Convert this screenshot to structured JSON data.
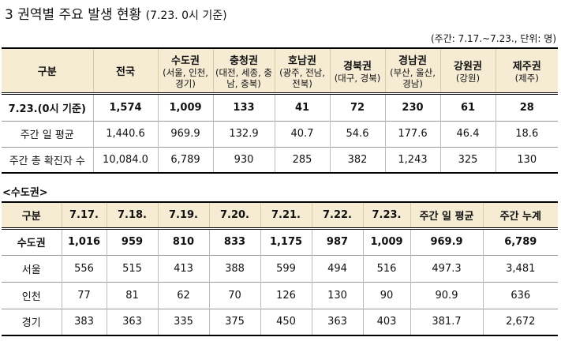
{
  "title": "3 권역별 주요 발생 현황",
  "title_note": "(7.23. 0시 기준)",
  "unit_note": "(주간: 7.17.~7.23., 단위: 명)",
  "table1": {
    "header": [
      {
        "label": "구분"
      },
      {
        "label": "전국"
      },
      {
        "label": "수도권",
        "sub": "(서울, 인천, 경기)"
      },
      {
        "label": "충청권",
        "sub": "(대전, 세종, 충남, 충북)"
      },
      {
        "label": "호남권",
        "sub": "(광주, 전남, 전북)"
      },
      {
        "label": "경북권",
        "sub": "(대구, 경북)"
      },
      {
        "label": "경남권",
        "sub": "(부산, 울산, 경남)"
      },
      {
        "label": "강원권",
        "sub": "(강원)"
      },
      {
        "label": "제주권",
        "sub": "(제주)"
      }
    ],
    "rows": [
      [
        "7.23.(0시 기준)",
        "1,574",
        "1,009",
        "133",
        "41",
        "72",
        "230",
        "61",
        "28"
      ],
      [
        "주간 일 평균",
        "1,440.6",
        "969.9",
        "132.9",
        "40.7",
        "54.6",
        "177.6",
        "46.4",
        "18.6"
      ],
      [
        "주간 총 확진자 수",
        "10,084.0",
        "6,789",
        "930",
        "285",
        "382",
        "1,243",
        "325",
        "130"
      ]
    ]
  },
  "section2": "<수도권>",
  "table2": {
    "header": [
      "구분",
      "7.17.",
      "7.18.",
      "7.19.",
      "7.20.",
      "7.21.",
      "7.22.",
      "7.23.",
      "주간 일 평균",
      "주간 누계"
    ],
    "rows": [
      [
        "수도권",
        "1,016",
        "959",
        "810",
        "833",
        "1,175",
        "987",
        "1,009",
        "969.9",
        "6,789"
      ],
      [
        "서울",
        "556",
        "515",
        "413",
        "388",
        "599",
        "494",
        "516",
        "497.3",
        "3,481"
      ],
      [
        "인천",
        "77",
        "81",
        "62",
        "70",
        "126",
        "130",
        "90",
        "90.9",
        "636"
      ],
      [
        "경기",
        "383",
        "363",
        "335",
        "375",
        "450",
        "363",
        "403",
        "381.7",
        "2,672"
      ]
    ]
  }
}
